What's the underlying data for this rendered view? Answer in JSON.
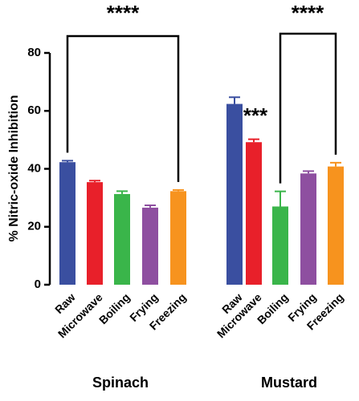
{
  "chart_data": {
    "type": "bar",
    "y_label": "% Nitric-oxide Inhibition",
    "categories": [
      "Raw",
      "Microwave",
      "Boiling",
      "Frying",
      "Freezing"
    ],
    "colors": [
      "#3a4fa0",
      "#e8202a",
      "#3ab54a",
      "#8e4fa0",
      "#f7931e"
    ],
    "groups": [
      {
        "name": "Spinach",
        "values": [
          42.3,
          35.4,
          31.3,
          26.6,
          32.3
        ],
        "errors": [
          0.5,
          0.5,
          1.0,
          0.8,
          0.4
        ]
      },
      {
        "name": "Mustard",
        "values": [
          62.4,
          49.2,
          27.0,
          38.4,
          40.8
        ],
        "errors": [
          2.3,
          1.0,
          5.2,
          0.8,
          1.3
        ]
      }
    ],
    "annotations": [
      "****",
      "****",
      "***"
    ],
    "ylim": [
      0,
      80
    ],
    "yticks": [
      0,
      20,
      40,
      60,
      80
    ]
  }
}
